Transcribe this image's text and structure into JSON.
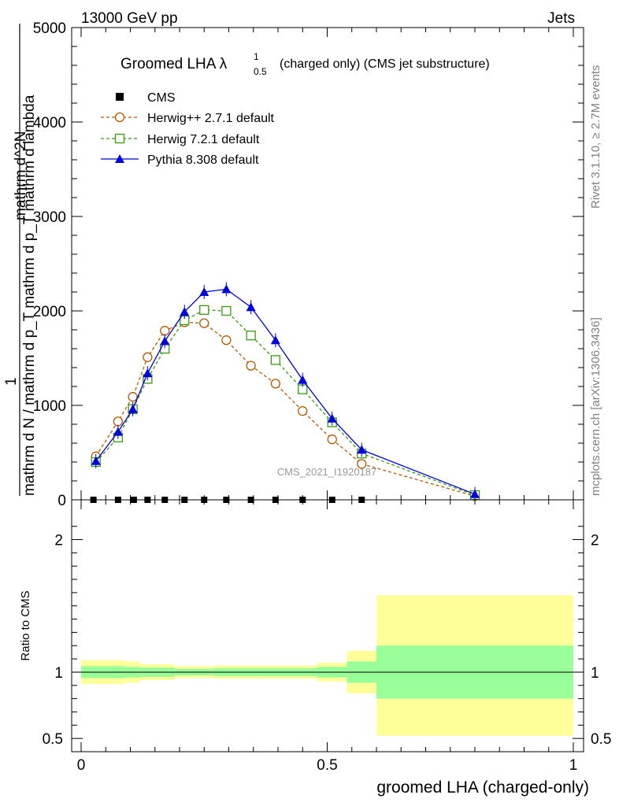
{
  "header": {
    "left": "13000 GeV pp",
    "right": "Jets"
  },
  "chart_data": {
    "type": "line",
    "title": "Groomed LHA",
    "title_symbol": "λ",
    "title_sup": "1",
    "title_sub": "0.5",
    "title_suffix": "(charged only) (CMS jet substructure)",
    "ylabel_numerator": "1",
    "ylabel_denominator": "mathrm d N / mathrm d p_T mathrm d p_T mathrm d lambda",
    "ylabel_overlay": "mathrm d^2N",
    "xlabel": "groomed LHA (charged-only)",
    "ratio_ylabel": "Ratio to CMS",
    "watermark": "CMS_2021_I1920187",
    "side_text_top": "Rivet 3.1.10, ≥ 2.7M events",
    "side_text_bottom": "mcplots.cern.ch [arXiv:1306.3436]",
    "xlim": [
      0,
      1
    ],
    "ylim": [
      0,
      5000
    ],
    "y_ticks": [
      "0",
      "1000",
      "2000",
      "3000",
      "4000",
      "5000"
    ],
    "x_ticks": [
      "0",
      "0.5",
      "1"
    ],
    "ratio_ylim": [
      0.4,
      2.3
    ],
    "ratio_ticks": [
      "0.5",
      "1",
      "2"
    ],
    "grid": false,
    "legend_position": "top-left",
    "series": [
      {
        "name": "CMS",
        "color": "#000000",
        "marker": "filled-square",
        "line": "none",
        "x": [
          0.025,
          0.075,
          0.107,
          0.135,
          0.17,
          0.21,
          0.25,
          0.295,
          0.345,
          0.395,
          0.45,
          0.51,
          0.57
        ],
        "y": [
          0,
          0,
          0,
          0,
          0,
          0,
          0,
          0,
          0,
          0,
          0,
          0,
          0
        ]
      },
      {
        "name": "Herwig++ 2.7.1 default",
        "color": "#b35900",
        "marker": "open-circle",
        "line": "dashed",
        "x": [
          0.03,
          0.075,
          0.105,
          0.135,
          0.17,
          0.21,
          0.25,
          0.295,
          0.345,
          0.395,
          0.45,
          0.51,
          0.57,
          0.8
        ],
        "y": [
          460,
          830,
          1090,
          1510,
          1790,
          1880,
          1870,
          1690,
          1420,
          1230,
          940,
          640,
          380,
          40
        ]
      },
      {
        "name": "Herwig 7.2.1 default",
        "color": "#3a9a10",
        "marker": "open-square",
        "line": "dashed",
        "x": [
          0.03,
          0.075,
          0.105,
          0.135,
          0.17,
          0.21,
          0.25,
          0.295,
          0.345,
          0.395,
          0.45,
          0.51,
          0.57,
          0.8
        ],
        "y": [
          400,
          660,
          960,
          1280,
          1600,
          1900,
          2010,
          2000,
          1740,
          1480,
          1170,
          820,
          490,
          50
        ]
      },
      {
        "name": "Pythia 8.308 default",
        "color": "#0000dd",
        "marker": "filled-triangle",
        "line": "solid",
        "x": [
          0.03,
          0.075,
          0.105,
          0.135,
          0.17,
          0.21,
          0.25,
          0.295,
          0.345,
          0.395,
          0.45,
          0.51,
          0.57,
          0.8
        ],
        "y": [
          410,
          720,
          960,
          1340,
          1680,
          1990,
          2200,
          2230,
          2040,
          1690,
          1270,
          860,
          530,
          60
        ]
      }
    ],
    "ratio_bands": [
      {
        "xlo": 0.0,
        "xhi": 0.045,
        "stat": [
          0.955,
          1.045
        ],
        "total": [
          0.91,
          1.09
        ]
      },
      {
        "xlo": 0.045,
        "xhi": 0.09,
        "stat": [
          0.955,
          1.045
        ],
        "total": [
          0.91,
          1.09
        ]
      },
      {
        "xlo": 0.09,
        "xhi": 0.12,
        "stat": [
          0.96,
          1.04
        ],
        "total": [
          0.92,
          1.08
        ]
      },
      {
        "xlo": 0.12,
        "xhi": 0.15,
        "stat": [
          0.965,
          1.035
        ],
        "total": [
          0.94,
          1.06
        ]
      },
      {
        "xlo": 0.15,
        "xhi": 0.19,
        "stat": [
          0.965,
          1.035
        ],
        "total": [
          0.94,
          1.06
        ]
      },
      {
        "xlo": 0.19,
        "xhi": 0.23,
        "stat": [
          0.975,
          1.025
        ],
        "total": [
          0.955,
          1.045
        ]
      },
      {
        "xlo": 0.23,
        "xhi": 0.27,
        "stat": [
          0.975,
          1.025
        ],
        "total": [
          0.955,
          1.045
        ]
      },
      {
        "xlo": 0.27,
        "xhi": 0.32,
        "stat": [
          0.97,
          1.03
        ],
        "total": [
          0.95,
          1.05
        ]
      },
      {
        "xlo": 0.32,
        "xhi": 0.37,
        "stat": [
          0.97,
          1.03
        ],
        "total": [
          0.95,
          1.05
        ]
      },
      {
        "xlo": 0.37,
        "xhi": 0.42,
        "stat": [
          0.97,
          1.03
        ],
        "total": [
          0.95,
          1.05
        ]
      },
      {
        "xlo": 0.42,
        "xhi": 0.48,
        "stat": [
          0.97,
          1.03
        ],
        "total": [
          0.95,
          1.05
        ]
      },
      {
        "xlo": 0.48,
        "xhi": 0.54,
        "stat": [
          0.96,
          1.04
        ],
        "total": [
          0.93,
          1.07
        ]
      },
      {
        "xlo": 0.54,
        "xhi": 0.6,
        "stat": [
          0.92,
          1.08
        ],
        "total": [
          0.84,
          1.16
        ]
      },
      {
        "xlo": 0.6,
        "xhi": 1.0,
        "stat": [
          0.8,
          1.2
        ],
        "total": [
          0.52,
          1.58
        ]
      }
    ],
    "band_colors": {
      "stat": "#99ff99",
      "total": "#ffff99"
    }
  }
}
